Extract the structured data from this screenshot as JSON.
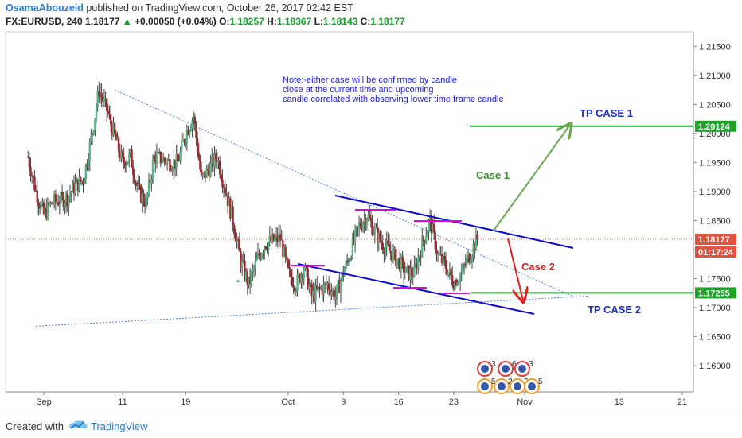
{
  "header": {
    "author": "OsamaAbouzeid",
    "published": "published on TradingView.com, October 26, 2017 02:42 EST",
    "symbol": "FX:EURUSD, 240",
    "last": "1.18177",
    "change": "+0.00050 (+0.04%)",
    "o_label": "O:",
    "o": "1.18257",
    "h_label": "H:",
    "h": "1.18367",
    "l_label": "L:",
    "l": "1.18143",
    "c_label": "C:",
    "c": "1.18177"
  },
  "footer": {
    "created_with": "Created with",
    "brand": "TradingView"
  },
  "chart_data": {
    "type": "candlestick",
    "symbol": "FX:EURUSD",
    "interval": "240",
    "ylim": [
      1.1555,
      1.2175
    ],
    "y_ticks": [
      "1.21500",
      "1.21000",
      "1.20500",
      "1.20000",
      "1.19500",
      "1.19000",
      "1.18500",
      "1.18000",
      "1.17500",
      "1.17000",
      "1.16500",
      "1.16000"
    ],
    "x_ticks": [
      {
        "label": "Sep",
        "date": "2017-09-01"
      },
      {
        "label": "11",
        "date": "2017-09-11"
      },
      {
        "label": "19",
        "date": "2017-09-19"
      },
      {
        "label": "Oct",
        "date": "2017-10-02"
      },
      {
        "label": "9",
        "date": "2017-10-09"
      },
      {
        "label": "16",
        "date": "2017-10-16"
      },
      {
        "label": "23",
        "date": "2017-10-23"
      },
      {
        "label": "Nov",
        "date": "2017-11-01"
      },
      {
        "label": "13",
        "date": "2017-11-13"
      },
      {
        "label": "21",
        "date": "2017-11-21"
      }
    ],
    "colors": {
      "up": "#53b987",
      "down": "#a3262a",
      "wick": "#444444",
      "channel": "#0b0bd6",
      "target": "#1fa32a",
      "price_line": "#d66b5c",
      "dotted": "#4d7fdc",
      "magenta": "#e600e6"
    },
    "price_label": {
      "value": "1.18177",
      "timer": "01:17:24"
    },
    "note": [
      "Note:-either case will be confirmed by candle",
      " close at the current time and upcoming",
      "candle correlated with observing lower time frame candle"
    ],
    "annotations": {
      "tp1": "TP CASE 1",
      "tp1_value": "1.20124",
      "tp2": "TP CASE 2",
      "tp2_value": "1.17255",
      "case1": "Case 1",
      "case2": "Case 2"
    },
    "events": [
      {
        "count": "3",
        "date": "2017-10-24"
      },
      {
        "count": "6",
        "date": "2017-10-26"
      },
      {
        "count": "3",
        "date": "2017-10-27"
      },
      {
        "count": "5",
        "date": "2017-10-24"
      },
      {
        "count": "2",
        "date": "2017-10-25"
      },
      {
        "count": "2",
        "date": "2017-10-26"
      },
      {
        "count": "5",
        "date": "2017-10-27"
      }
    ],
    "path_points": [
      [
        "2017-08-30",
        1.196
      ],
      [
        "2017-08-31",
        1.19
      ],
      [
        "2017-09-01",
        1.186
      ],
      [
        "2017-09-02",
        1.188
      ],
      [
        "2017-09-04",
        1.189
      ],
      [
        "2017-09-05",
        1.191
      ],
      [
        "2017-09-06",
        1.192
      ],
      [
        "2017-09-07",
        1.199
      ],
      [
        "2017-09-08",
        1.2075
      ],
      [
        "2017-09-09",
        1.204
      ],
      [
        "2017-09-11",
        1.195
      ],
      [
        "2017-09-12",
        1.196
      ],
      [
        "2017-09-13",
        1.19
      ],
      [
        "2017-09-14",
        1.188
      ],
      [
        "2017-09-15",
        1.196
      ],
      [
        "2017-09-17",
        1.195
      ],
      [
        "2017-09-18",
        1.195
      ],
      [
        "2017-09-19",
        1.2
      ],
      [
        "2017-09-20",
        1.203
      ],
      [
        "2017-09-21",
        1.192
      ],
      [
        "2017-09-22",
        1.194
      ],
      [
        "2017-09-23",
        1.196
      ],
      [
        "2017-09-25",
        1.185
      ],
      [
        "2017-09-26",
        1.178
      ],
      [
        "2017-09-27",
        1.174
      ],
      [
        "2017-09-28",
        1.178
      ],
      [
        "2017-09-29",
        1.181
      ],
      [
        "2017-10-01",
        1.182
      ],
      [
        "2017-10-02",
        1.176
      ],
      [
        "2017-10-03",
        1.174
      ],
      [
        "2017-10-04",
        1.177
      ],
      [
        "2017-10-05",
        1.172
      ],
      [
        "2017-10-06",
        1.173
      ],
      [
        "2017-10-07",
        1.174
      ],
      [
        "2017-10-08",
        1.172
      ],
      [
        "2017-10-09",
        1.176
      ],
      [
        "2017-10-10",
        1.18
      ],
      [
        "2017-10-11",
        1.184
      ],
      [
        "2017-10-12",
        1.186
      ],
      [
        "2017-10-13",
        1.183
      ],
      [
        "2017-10-14",
        1.181
      ],
      [
        "2017-10-16",
        1.178
      ],
      [
        "2017-10-17",
        1.176
      ],
      [
        "2017-10-18",
        1.176
      ],
      [
        "2017-10-19",
        1.181
      ],
      [
        "2017-10-20",
        1.185
      ],
      [
        "2017-10-21",
        1.179
      ],
      [
        "2017-10-22",
        1.177
      ],
      [
        "2017-10-23",
        1.1745
      ],
      [
        "2017-10-24",
        1.176
      ],
      [
        "2017-10-25",
        1.179
      ],
      [
        "2017-10-26",
        1.1818
      ]
    ]
  }
}
